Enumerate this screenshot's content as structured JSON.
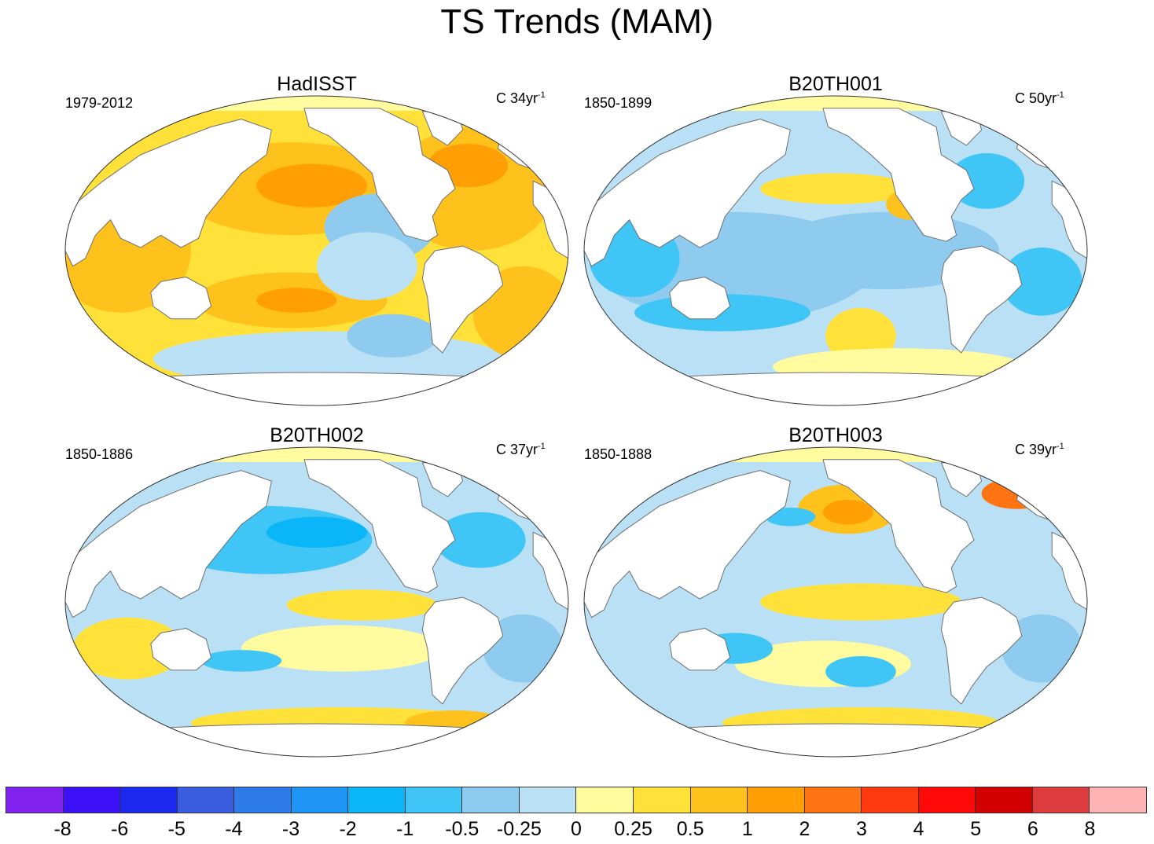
{
  "figure": {
    "title": "TS Trends (MAM)"
  },
  "panels": [
    {
      "title": "HadISST",
      "period": "1979-2012",
      "units_prefix": "C 34yr",
      "units_exp": "-1",
      "style": "warm"
    },
    {
      "title": "B20TH001",
      "period": "1850-1899",
      "units_prefix": "C 50yr",
      "units_exp": "-1",
      "style": "cool"
    },
    {
      "title": "B20TH002",
      "period": "1850-1886",
      "units_prefix": "C 37yr",
      "units_exp": "-1",
      "style": "mixed"
    },
    {
      "title": "B20TH003",
      "period": "1850-1888",
      "units_prefix": "C 39yr",
      "units_exp": "-1",
      "style": "mixed2"
    }
  ],
  "colorbar": {
    "colors": [
      "#8122f0",
      "#3d11f8",
      "#1a28f0",
      "#3a5cde",
      "#2d7ae8",
      "#1e95f5",
      "#0ab6f8",
      "#3fc5f6",
      "#8fcbef",
      "#b9e0f5",
      "#fffb9e",
      "#ffe13a",
      "#ffc21d",
      "#ff9e05",
      "#ff7412",
      "#ff3a0e",
      "#ff0808",
      "#d20000",
      "#dc3c3c",
      "#ffb4b4"
    ],
    "labels": [
      "-8",
      "-6",
      "-5",
      "-4",
      "-3",
      "-2",
      "-1",
      "-0.5",
      "-0.25",
      "0",
      "0.25",
      "0.5",
      "1",
      "2",
      "3",
      "4",
      "5",
      "6",
      "8"
    ]
  },
  "palette": {
    "land": "#ffffff",
    "coast": "#6e6e6e",
    "frame": "#333333"
  }
}
